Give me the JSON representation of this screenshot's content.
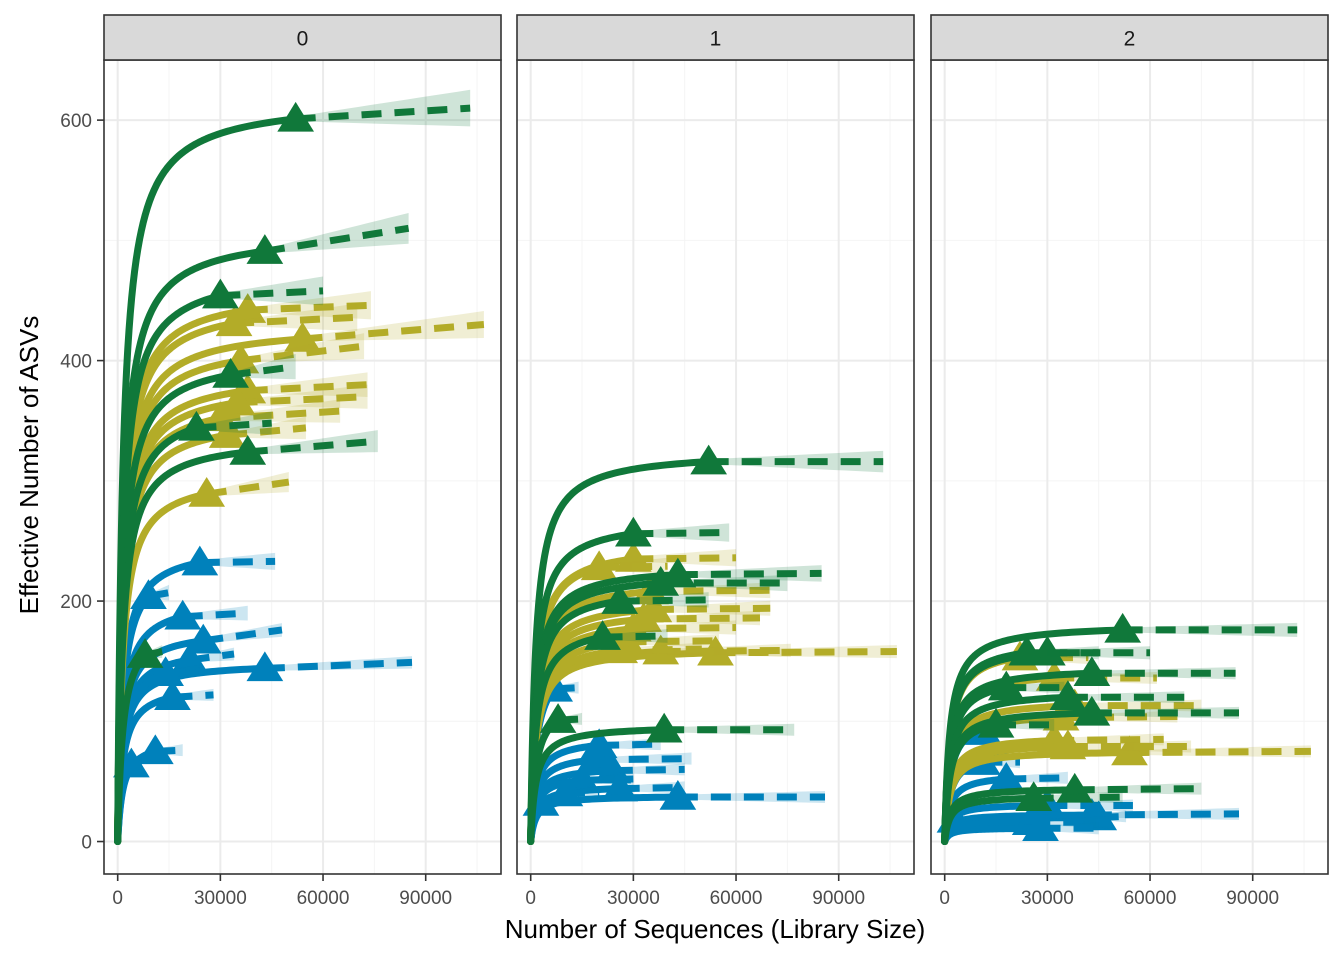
{
  "chart_data": {
    "type": "line",
    "subtype": "faceted-rarefaction-curves",
    "xlabel": "Number of Sequences (Library Size)",
    "ylabel": "Effective Number of ASVs",
    "xlim": [
      -4000,
      112000
    ],
    "ylim": [
      -27,
      650
    ],
    "x_ticks": [
      0,
      30000,
      60000,
      90000
    ],
    "x_tick_labels": [
      "0",
      "30000",
      "60000",
      "90000"
    ],
    "y_ticks": [
      0,
      200,
      400,
      600
    ],
    "y_tick_labels": [
      "0",
      "200",
      "400",
      "600"
    ],
    "grid": true,
    "legend": "none",
    "colors": {
      "green": "#10783a",
      "olive": "#b3ac28",
      "blue": "#0081bb",
      "strip_fill": "#d9d9d9",
      "panel_border": "#333333",
      "grid_major": "#ebebeb",
      "grid_minor": "#f4f4f4"
    },
    "line_styles": {
      "interpolated": "solid",
      "extrapolated": "dashed"
    },
    "facets": [
      {
        "label": "0",
        "curves": [
          {
            "color": "green",
            "n": 52000,
            "asv": 601,
            "xmax": 103000,
            "ymax": 610
          },
          {
            "color": "green",
            "n": 43000,
            "asv": 491,
            "xmax": 85000,
            "ymax": 510
          },
          {
            "color": "green",
            "n": 30000,
            "asv": 454,
            "xmax": 60000,
            "ymax": 458
          },
          {
            "color": "olive",
            "n": 38000,
            "asv": 442,
            "xmax": 74000,
            "ymax": 446
          },
          {
            "color": "olive",
            "n": 34000,
            "asv": 431,
            "xmax": 70000,
            "ymax": 436
          },
          {
            "color": "olive",
            "n": 54000,
            "asv": 418,
            "xmax": 107000,
            "ymax": 430
          },
          {
            "color": "olive",
            "n": 36000,
            "asv": 400,
            "xmax": 72000,
            "ymax": 412
          },
          {
            "color": "green",
            "n": 33000,
            "asv": 388,
            "xmax": 52000,
            "ymax": 395
          },
          {
            "color": "olive",
            "n": 38000,
            "asv": 375,
            "xmax": 73000,
            "ymax": 380
          },
          {
            "color": "olive",
            "n": 35000,
            "asv": 365,
            "xmax": 73000,
            "ymax": 370
          },
          {
            "color": "olive",
            "n": 30000,
            "asv": 352,
            "xmax": 65000,
            "ymax": 358
          },
          {
            "color": "green",
            "n": 23000,
            "asv": 344,
            "xmax": 45000,
            "ymax": 348
          },
          {
            "color": "olive",
            "n": 32000,
            "asv": 338,
            "xmax": 55000,
            "ymax": 344
          },
          {
            "color": "green",
            "n": 38000,
            "asv": 324,
            "xmax": 76000,
            "ymax": 333
          },
          {
            "color": "olive",
            "n": 26000,
            "asv": 289,
            "xmax": 50000,
            "ymax": 299
          },
          {
            "color": "blue",
            "n": 24000,
            "asv": 232,
            "xmax": 46000,
            "ymax": 233
          },
          {
            "color": "blue",
            "n": 9000,
            "asv": 204,
            "xmax": 15000,
            "ymax": 207
          },
          {
            "color": "blue",
            "n": 19000,
            "asv": 187,
            "xmax": 38000,
            "ymax": 190
          },
          {
            "color": "blue",
            "n": 25000,
            "asv": 167,
            "xmax": 48000,
            "ymax": 176
          },
          {
            "color": "green",
            "n": 8000,
            "asv": 155,
            "xmax": 13000,
            "ymax": 158
          },
          {
            "color": "blue",
            "n": 21000,
            "asv": 151,
            "xmax": 34000,
            "ymax": 156
          },
          {
            "color": "blue",
            "n": 43000,
            "asv": 144,
            "xmax": 86000,
            "ymax": 149
          },
          {
            "color": "blue",
            "n": 14000,
            "asv": 140,
            "xmax": 24000,
            "ymax": 142
          },
          {
            "color": "blue",
            "n": 16000,
            "asv": 120,
            "xmax": 28000,
            "ymax": 122
          },
          {
            "color": "blue",
            "n": 11000,
            "asv": 75,
            "xmax": 19000,
            "ymax": 76
          },
          {
            "color": "blue",
            "n": 4000,
            "asv": 64,
            "xmax": 7000,
            "ymax": 65
          }
        ]
      },
      {
        "label": "1",
        "curves": [
          {
            "color": "green",
            "n": 52000,
            "asv": 316,
            "xmax": 103000,
            "ymax": 316
          },
          {
            "color": "green",
            "n": 30000,
            "asv": 256,
            "xmax": 58000,
            "ymax": 257
          },
          {
            "color": "olive",
            "n": 30000,
            "asv": 235,
            "xmax": 60000,
            "ymax": 236
          },
          {
            "color": "green",
            "n": 43000,
            "asv": 222,
            "xmax": 85000,
            "ymax": 223
          },
          {
            "color": "olive",
            "n": 20000,
            "asv": 228,
            "xmax": 40000,
            "ymax": 229
          },
          {
            "color": "green",
            "n": 38000,
            "asv": 215,
            "xmax": 75000,
            "ymax": 215
          },
          {
            "color": "olive",
            "n": 35000,
            "asv": 208,
            "xmax": 70000,
            "ymax": 209
          },
          {
            "color": "green",
            "n": 26000,
            "asv": 200,
            "xmax": 52000,
            "ymax": 201
          },
          {
            "color": "olive",
            "n": 36000,
            "asv": 193,
            "xmax": 70000,
            "ymax": 194
          },
          {
            "color": "olive",
            "n": 33000,
            "asv": 185,
            "xmax": 67000,
            "ymax": 186
          },
          {
            "color": "olive",
            "n": 30000,
            "asv": 177,
            "xmax": 60000,
            "ymax": 178
          },
          {
            "color": "green",
            "n": 21000,
            "asv": 170,
            "xmax": 40000,
            "ymax": 171
          },
          {
            "color": "olive",
            "n": 28000,
            "asv": 166,
            "xmax": 55000,
            "ymax": 167
          },
          {
            "color": "olive",
            "n": 54000,
            "asv": 157,
            "xmax": 107000,
            "ymax": 158
          },
          {
            "color": "olive",
            "n": 38000,
            "asv": 158,
            "xmax": 76000,
            "ymax": 159
          },
          {
            "color": "olive",
            "n": 26000,
            "asv": 159,
            "xmax": 50000,
            "ymax": 160
          },
          {
            "color": "blue",
            "n": 7000,
            "asv": 127,
            "xmax": 14000,
            "ymax": 128
          },
          {
            "color": "green",
            "n": 8000,
            "asv": 101,
            "xmax": 15000,
            "ymax": 102
          },
          {
            "color": "green",
            "n": 39000,
            "asv": 93,
            "xmax": 77000,
            "ymax": 93
          },
          {
            "color": "blue",
            "n": 20000,
            "asv": 80,
            "xmax": 38000,
            "ymax": 81
          },
          {
            "color": "blue",
            "n": 19000,
            "asv": 68,
            "xmax": 47000,
            "ymax": 69
          },
          {
            "color": "blue",
            "n": 24000,
            "asv": 59,
            "xmax": 45000,
            "ymax": 60
          },
          {
            "color": "blue",
            "n": 15000,
            "asv": 51,
            "xmax": 30000,
            "ymax": 52
          },
          {
            "color": "blue",
            "n": 26000,
            "asv": 44,
            "xmax": 45000,
            "ymax": 45
          },
          {
            "color": "blue",
            "n": 43000,
            "asv": 37,
            "xmax": 86000,
            "ymax": 37
          },
          {
            "color": "blue",
            "n": 10000,
            "asv": 40,
            "xmax": 20000,
            "ymax": 41
          },
          {
            "color": "blue",
            "n": 3000,
            "asv": 32,
            "xmax": 6000,
            "ymax": 32
          }
        ]
      },
      {
        "label": "2",
        "curves": [
          {
            "color": "green",
            "n": 52000,
            "asv": 176,
            "xmax": 103000,
            "ymax": 176
          },
          {
            "color": "green",
            "n": 30000,
            "asv": 157,
            "xmax": 60000,
            "ymax": 157
          },
          {
            "color": "olive",
            "n": 22000,
            "asv": 153,
            "xmax": 42000,
            "ymax": 153
          },
          {
            "color": "green",
            "n": 24000,
            "asv": 157,
            "xmax": 45000,
            "ymax": 157
          },
          {
            "color": "green",
            "n": 43000,
            "asv": 140,
            "xmax": 85000,
            "ymax": 140
          },
          {
            "color": "olive",
            "n": 32000,
            "asv": 136,
            "xmax": 62000,
            "ymax": 136
          },
          {
            "color": "green",
            "n": 18000,
            "asv": 128,
            "xmax": 35000,
            "ymax": 128
          },
          {
            "color": "green",
            "n": 36000,
            "asv": 120,
            "xmax": 70000,
            "ymax": 120
          },
          {
            "color": "olive",
            "n": 38000,
            "asv": 113,
            "xmax": 75000,
            "ymax": 113
          },
          {
            "color": "green",
            "n": 43000,
            "asv": 107,
            "xmax": 86000,
            "ymax": 107
          },
          {
            "color": "olive",
            "n": 34000,
            "asv": 103,
            "xmax": 68000,
            "ymax": 104
          },
          {
            "color": "green",
            "n": 15000,
            "asv": 97,
            "xmax": 32000,
            "ymax": 97
          },
          {
            "color": "olive",
            "n": 32000,
            "asv": 84,
            "xmax": 64000,
            "ymax": 85
          },
          {
            "color": "olive",
            "n": 54000,
            "asv": 74,
            "xmax": 107000,
            "ymax": 75
          },
          {
            "color": "olive",
            "n": 36000,
            "asv": 79,
            "xmax": 72000,
            "ymax": 79
          },
          {
            "color": "blue",
            "n": 9000,
            "asv": 91,
            "xmax": 18000,
            "ymax": 92
          },
          {
            "color": "blue",
            "n": 14000,
            "asv": 79,
            "xmax": 27000,
            "ymax": 80
          },
          {
            "color": "blue",
            "n": 11000,
            "asv": 66,
            "xmax": 22000,
            "ymax": 66
          },
          {
            "color": "blue",
            "n": 18000,
            "asv": 52,
            "xmax": 36000,
            "ymax": 53
          },
          {
            "color": "green",
            "n": 38000,
            "asv": 43,
            "xmax": 75000,
            "ymax": 44
          },
          {
            "color": "green",
            "n": 26000,
            "asv": 36,
            "xmax": 52000,
            "ymax": 37
          },
          {
            "color": "blue",
            "n": 30000,
            "asv": 30,
            "xmax": 55000,
            "ymax": 30
          },
          {
            "color": "blue",
            "n": 43000,
            "asv": 22,
            "xmax": 86000,
            "ymax": 23
          },
          {
            "color": "blue",
            "n": 45000,
            "asv": 20,
            "xmax": 53000,
            "ymax": 21
          },
          {
            "color": "blue",
            "n": 25000,
            "asv": 16,
            "xmax": 48000,
            "ymax": 16
          },
          {
            "color": "blue",
            "n": 28000,
            "asv": 11,
            "xmax": 45000,
            "ymax": 11
          },
          {
            "color": "blue",
            "n": 3000,
            "asv": 18,
            "xmax": 6000,
            "ymax": 18
          }
        ]
      }
    ]
  }
}
